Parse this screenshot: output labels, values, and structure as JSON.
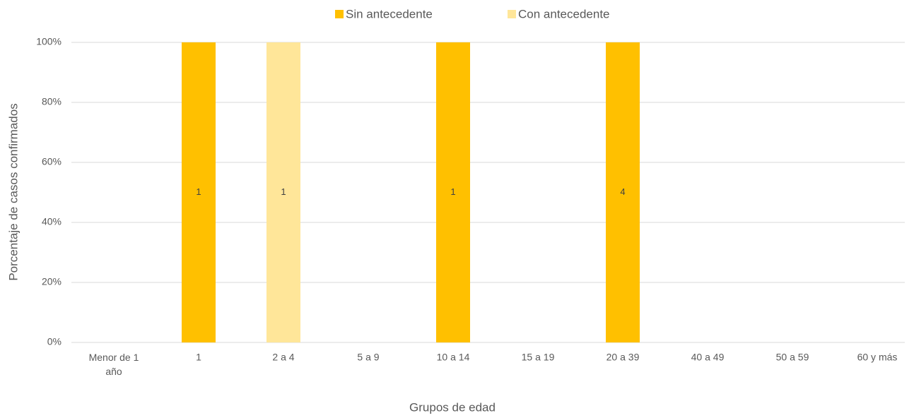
{
  "chart_data": {
    "type": "stacked_bar_100",
    "x_label": "Grupos de edad",
    "y_label": "Porcentaje de casos confirmados",
    "categories": [
      "Menor de 1 año",
      "1",
      "2 a 4",
      "5 a 9",
      "10 a 14",
      "15 a 19",
      "20 a 39",
      "40 a 49",
      "50 a 59",
      "60 y más"
    ],
    "series": [
      {
        "name": "Sin antecedente",
        "color": "#ffc000",
        "values": [
          0,
          100,
          0,
          0,
          100,
          0,
          100,
          0,
          0,
          0
        ],
        "counts": [
          null,
          1,
          null,
          null,
          1,
          null,
          4,
          null,
          null,
          null
        ]
      },
      {
        "name": "Con antecedente",
        "color": "#ffe699",
        "values": [
          0,
          0,
          100,
          0,
          0,
          0,
          0,
          0,
          0,
          0
        ],
        "counts": [
          null,
          null,
          1,
          null,
          null,
          null,
          null,
          null,
          null,
          null
        ]
      }
    ],
    "ylim": [
      0,
      100
    ],
    "yticks": [
      {
        "value": 0,
        "label": "0%"
      },
      {
        "value": 20,
        "label": "20%"
      },
      {
        "value": 40,
        "label": "40%"
      },
      {
        "value": 60,
        "label": "60%"
      },
      {
        "value": 80,
        "label": "80%"
      },
      {
        "value": 100,
        "label": "100%"
      }
    ],
    "grid": true,
    "legend": "top"
  }
}
